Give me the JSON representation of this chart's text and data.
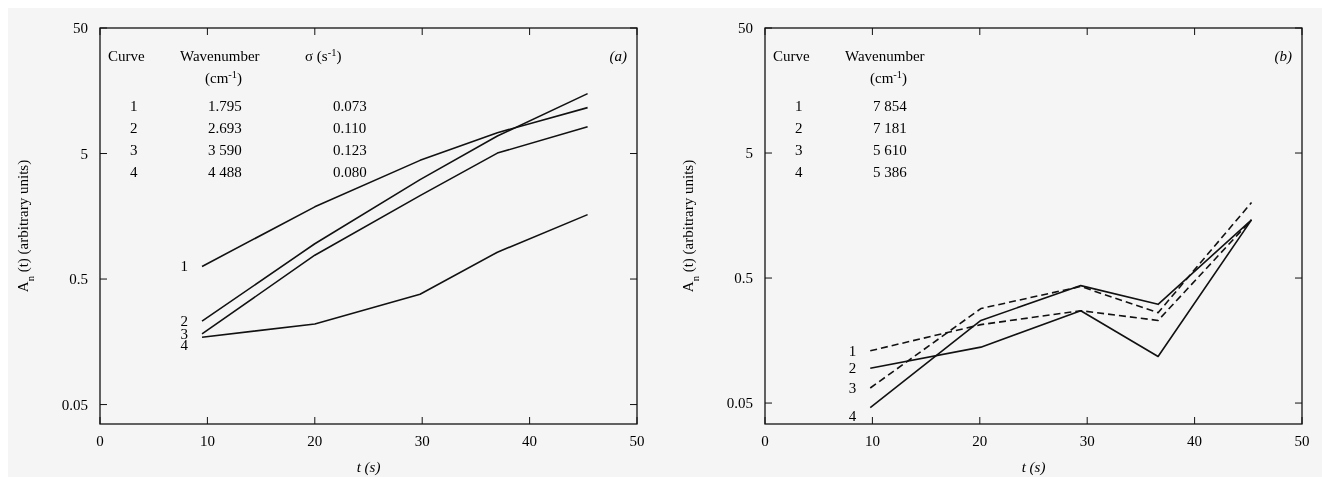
{
  "chart_data": [
    {
      "type": "line",
      "title": "(a)",
      "xlabel": "t (s)",
      "ylabel": "A$_{n}$ (t) (arbitrary units)",
      "log": true,
      "grid": false,
      "line_style": "solid",
      "xlim": [
        0,
        50
      ],
      "xticks": [
        0,
        10,
        20,
        30,
        40,
        50
      ],
      "ylim": [
        0.035,
        50
      ],
      "yticks": [
        0.05,
        0.5,
        5,
        50
      ],
      "series": [
        {
          "name": "1",
          "color": "#111111",
          "x": [
            9.5,
            20,
            29.8,
            37,
            45.4
          ],
          "values": [
            0.63,
            1.88,
            4.41,
            7.33,
            11.6
          ]
        },
        {
          "name": "2",
          "color": "#111111",
          "x": [
            9.5,
            20,
            29.8,
            37,
            45.4
          ],
          "values": [
            0.231,
            0.955,
            3.1,
            6.89,
            15.0
          ]
        },
        {
          "name": "3",
          "color": "#111111",
          "x": [
            9.5,
            20,
            29.8,
            37,
            45.4
          ],
          "values": [
            0.183,
            0.774,
            2.31,
            5.04,
            8.18
          ]
        },
        {
          "name": "4",
          "color": "#111111",
          "x": [
            9.5,
            20,
            29.8,
            37,
            45.4
          ],
          "values": [
            0.172,
            0.219,
            0.378,
            0.818,
            1.63
          ]
        }
      ],
      "annotations": [
        "Curve",
        "Wavenumber (cm$^{-1}$)",
        "σ (s$^{-1}$)",
        "1",
        "1.795",
        "0.073",
        "2",
        "2.693",
        "0.110",
        "3",
        "3 590",
        "0.123",
        "4",
        "4 488",
        "0.080"
      ]
    },
    {
      "type": "line",
      "title": "(b)",
      "xlabel": "t (s)",
      "ylabel": "A$_{n}$ (t) (arbitrary units)",
      "log": true,
      "grid": false,
      "xlim": [
        0,
        50
      ],
      "xticks": [
        0,
        10,
        20,
        30,
        40,
        50
      ],
      "ylim": [
        0.034,
        50
      ],
      "yticks": [
        0.05,
        0.5,
        5,
        50
      ],
      "series": [
        {
          "name": "1",
          "color": "#111111",
          "line_style": "dashed",
          "x": [
            9.8,
            20.1,
            29.4,
            36.6,
            45.3
          ],
          "values": [
            0.131,
            0.212,
            0.274,
            0.229,
            1.46
          ]
        },
        {
          "name": "2",
          "color": "#111111",
          "line_style": "solid",
          "x": [
            9.8,
            20.1,
            29.4,
            36.6,
            45.3
          ],
          "values": [
            0.095,
            0.14,
            0.274,
            0.118,
            1.46
          ]
        },
        {
          "name": "3",
          "color": "#111111",
          "line_style": "dashed",
          "x": [
            9.8,
            20.1,
            29.4,
            36.6,
            45.3
          ],
          "values": [
            0.066,
            0.285,
            0.428,
            0.264,
            2.01
          ]
        },
        {
          "name": "4",
          "color": "#111111",
          "line_style": "solid",
          "x": [
            9.8,
            20.1,
            29.4,
            36.6,
            45.3
          ],
          "values": [
            0.046,
            0.229,
            0.435,
            0.308,
            1.46
          ]
        }
      ],
      "annotations": [
        "Curve",
        "Wavenumber (cm$^{-1}$)",
        "1",
        "7 854",
        "2",
        "7 181",
        "3",
        "5 610",
        "4",
        "5 386"
      ]
    }
  ]
}
